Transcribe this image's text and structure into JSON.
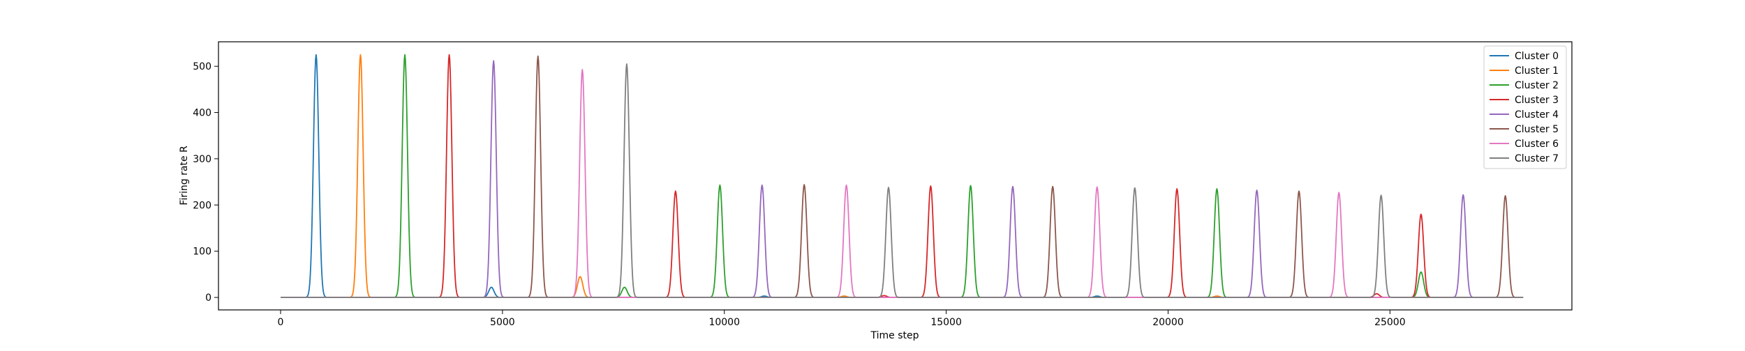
{
  "chart_data": {
    "type": "line",
    "xlabel": "Time step",
    "ylabel": "Firing rate R",
    "xlim": [
      -1400,
      29100
    ],
    "ylim": [
      -27,
      553
    ],
    "xticks": [
      0,
      5000,
      10000,
      15000,
      20000,
      25000
    ],
    "xtick_labels": [
      "0",
      "5000",
      "10000",
      "15000",
      "20000",
      "25000"
    ],
    "yticks": [
      0,
      100,
      200,
      300,
      400,
      500
    ],
    "ytick_labels": [
      "0",
      "100",
      "200",
      "300",
      "400",
      "500"
    ],
    "grid": false,
    "legend_position": "top-right",
    "series": [
      {
        "name": "Cluster 0",
        "color": "#1f77b4",
        "peaks": [
          [
            800,
            525
          ],
          [
            4750,
            22
          ],
          [
            10900,
            3
          ],
          [
            18400,
            3
          ]
        ],
        "baseline": [
          0,
          28000
        ]
      },
      {
        "name": "Cluster 1",
        "color": "#ff7f0e",
        "peaks": [
          [
            1800,
            525
          ],
          [
            6750,
            45
          ],
          [
            12700,
            3
          ],
          [
            21100,
            3
          ]
        ],
        "baseline": [
          0,
          28000
        ]
      },
      {
        "name": "Cluster 2",
        "color": "#2ca02c",
        "peaks": [
          [
            2800,
            525
          ],
          [
            7750,
            22
          ],
          [
            9900,
            243
          ],
          [
            15550,
            242
          ],
          [
            21100,
            235
          ],
          [
            25700,
            55
          ]
        ],
        "baseline": [
          0,
          28000
        ]
      },
      {
        "name": "Cluster 3",
        "color": "#d62728",
        "peaks": [
          [
            3800,
            525
          ],
          [
            8900,
            230
          ],
          [
            14650,
            241
          ],
          [
            20200,
            235
          ],
          [
            25700,
            180
          ],
          [
            13600,
            4
          ],
          [
            24700,
            8
          ]
        ],
        "baseline": [
          0,
          28000
        ]
      },
      {
        "name": "Cluster 4",
        "color": "#9467bd",
        "peaks": [
          [
            4800,
            512
          ],
          [
            10850,
            243
          ],
          [
            16500,
            240
          ],
          [
            22000,
            232
          ],
          [
            26650,
            222
          ]
        ],
        "baseline": [
          0,
          28000
        ]
      },
      {
        "name": "Cluster 5",
        "color": "#8c564b",
        "peaks": [
          [
            5800,
            522
          ],
          [
            11800,
            244
          ],
          [
            17400,
            240
          ],
          [
            22950,
            230
          ],
          [
            27600,
            220
          ]
        ],
        "baseline": [
          0,
          28000
        ]
      },
      {
        "name": "Cluster 6",
        "color": "#e377c2",
        "peaks": [
          [
            6800,
            493
          ],
          [
            12750,
            243
          ],
          [
            18400,
            239
          ],
          [
            23850,
            227
          ]
        ],
        "baseline": [
          0,
          28000
        ]
      },
      {
        "name": "Cluster 7",
        "color": "#7f7f7f",
        "peaks": [
          [
            7800,
            505
          ],
          [
            13700,
            238
          ],
          [
            19250,
            237
          ],
          [
            24800,
            221
          ]
        ],
        "baseline": [
          0,
          28000
        ]
      }
    ]
  }
}
